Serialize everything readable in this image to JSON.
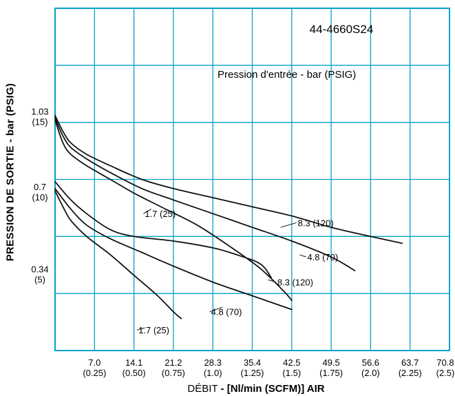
{
  "chart_data": {
    "type": "line",
    "title": "44-4660S24",
    "annotation": "Pression d'entrée - bar (PSIG)",
    "xlabel_light": "DÉBIT",
    "xlabel_bold": "- [Nl/min (SCFM)] AIR",
    "ylabel": "PRESSION DE SORTIE - bar (PSIG)",
    "xlim": [
      0,
      2.5
    ],
    "ylim": [
      0,
      1.5
    ],
    "grid": true,
    "grid_color": "#00a2c8",
    "line_color": "#111111",
    "x_ticks": [
      {
        "x": 0.25,
        "line1": "7.0",
        "line2": "(0.25)"
      },
      {
        "x": 0.5,
        "line1": "14.1",
        "line2": "(0.50)"
      },
      {
        "x": 0.75,
        "line1": "21.2",
        "line2": "(0.75)"
      },
      {
        "x": 1.0,
        "line1": "28.3",
        "line2": "(1.0)"
      },
      {
        "x": 1.25,
        "line1": "35.4",
        "line2": "(1.25)"
      },
      {
        "x": 1.5,
        "line1": "42.5",
        "line2": "(1.5)"
      },
      {
        "x": 1.75,
        "line1": "49.5",
        "line2": "(1.75)"
      },
      {
        "x": 2.0,
        "line1": "56.6",
        "line2": "(2.0)"
      },
      {
        "x": 2.25,
        "line1": "63.7",
        "line2": "(2.25)"
      },
      {
        "x": 2.5,
        "line1": "70.8",
        "line2": "(2.5)"
      }
    ],
    "y_ticks": [
      {
        "y": 1.03,
        "line1": "1.03",
        "line2": "(15)"
      },
      {
        "y": 0.7,
        "line1": "0.7",
        "line2": "(10)"
      },
      {
        "y": 0.34,
        "line1": "0.34",
        "line2": "(5)"
      }
    ],
    "series": [
      {
        "name": "8.3 (120)",
        "group": "1.03 bar",
        "label_at": [
          1.53,
          0.56
        ],
        "leader": [
          [
            1.53,
            0.56
          ],
          [
            1.43,
            0.54
          ]
        ],
        "points": [
          [
            0,
            1.03
          ],
          [
            0.05,
            0.96
          ],
          [
            0.1,
            0.91
          ],
          [
            0.2,
            0.86
          ],
          [
            0.35,
            0.81
          ],
          [
            0.55,
            0.75
          ],
          [
            0.75,
            0.71
          ],
          [
            1.0,
            0.67
          ],
          [
            1.25,
            0.63
          ],
          [
            1.5,
            0.59
          ],
          [
            1.75,
            0.54
          ],
          [
            2.0,
            0.5
          ],
          [
            2.2,
            0.47
          ]
        ]
      },
      {
        "name": "4.8 (70)",
        "group": "1.03 bar",
        "label_at": [
          1.59,
          0.41
        ],
        "leader": [
          [
            1.59,
            0.41
          ],
          [
            1.55,
            0.42
          ]
        ],
        "points": [
          [
            0,
            1.02
          ],
          [
            0.05,
            0.94
          ],
          [
            0.1,
            0.89
          ],
          [
            0.2,
            0.84
          ],
          [
            0.35,
            0.78
          ],
          [
            0.55,
            0.71
          ],
          [
            0.75,
            0.66
          ],
          [
            1.0,
            0.6
          ],
          [
            1.25,
            0.54
          ],
          [
            1.5,
            0.48
          ],
          [
            1.75,
            0.41
          ],
          [
            1.9,
            0.35
          ]
        ]
      },
      {
        "name": "1.7 (25)",
        "group": "1.03 bar",
        "label_at": [
          0.56,
          0.6
        ],
        "leader": [
          [
            0.56,
            0.6
          ],
          [
            0.61,
            0.62
          ]
        ],
        "points": [
          [
            0,
            1.01
          ],
          [
            0.05,
            0.91
          ],
          [
            0.1,
            0.86
          ],
          [
            0.2,
            0.81
          ],
          [
            0.35,
            0.75
          ],
          [
            0.5,
            0.69
          ],
          [
            0.7,
            0.62
          ],
          [
            0.9,
            0.55
          ],
          [
            1.1,
            0.46
          ],
          [
            1.3,
            0.36
          ],
          [
            1.45,
            0.26
          ],
          [
            1.5,
            0.22
          ]
        ]
      },
      {
        "name": "8.3 (120)",
        "group": "0.7 bar",
        "label_at": [
          1.4,
          0.3
        ],
        "leader": [
          [
            1.4,
            0.3
          ],
          [
            1.35,
            0.31
          ]
        ],
        "points": [
          [
            0,
            0.74
          ],
          [
            0.1,
            0.66
          ],
          [
            0.2,
            0.6
          ],
          [
            0.35,
            0.53
          ],
          [
            0.5,
            0.5
          ],
          [
            0.75,
            0.48
          ],
          [
            1.0,
            0.45
          ],
          [
            1.15,
            0.42
          ],
          [
            1.3,
            0.38
          ],
          [
            1.37,
            0.32
          ]
        ]
      },
      {
        "name": "4.8 (70)",
        "group": "0.7 bar",
        "label_at": [
          0.98,
          0.17
        ],
        "leader": [
          [
            0.98,
            0.17
          ],
          [
            1.06,
            0.19
          ]
        ],
        "points": [
          [
            0,
            0.71
          ],
          [
            0.1,
            0.62
          ],
          [
            0.2,
            0.55
          ],
          [
            0.35,
            0.49
          ],
          [
            0.55,
            0.43
          ],
          [
            0.75,
            0.37
          ],
          [
            1.0,
            0.3
          ],
          [
            1.25,
            0.24
          ],
          [
            1.5,
            0.18
          ]
        ]
      },
      {
        "name": "1.7 (25)",
        "group": "0.7 bar",
        "label_at": [
          0.52,
          0.09
        ],
        "leader": [
          [
            0.52,
            0.09
          ],
          [
            0.57,
            0.1
          ]
        ],
        "points": [
          [
            0,
            0.7
          ],
          [
            0.05,
            0.63
          ],
          [
            0.1,
            0.57
          ],
          [
            0.2,
            0.5
          ],
          [
            0.35,
            0.42
          ],
          [
            0.5,
            0.33
          ],
          [
            0.65,
            0.24
          ],
          [
            0.75,
            0.17
          ],
          [
            0.8,
            0.14
          ]
        ]
      }
    ]
  }
}
